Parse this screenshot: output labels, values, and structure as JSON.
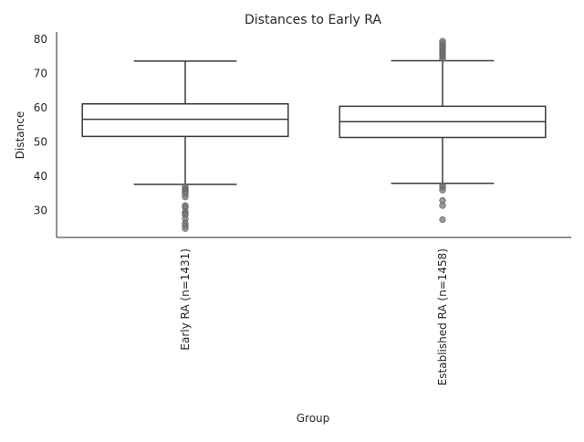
{
  "chart_data": {
    "type": "box",
    "title": "Distances to Early RA",
    "xlabel": "Group",
    "ylabel": "Distance",
    "ylim": [
      22,
      82
    ],
    "yticks": [
      30,
      40,
      50,
      60,
      70,
      80
    ],
    "grid": false,
    "legend": "none",
    "box_stroke": "#3a3a3a",
    "outlier_color": "#777777",
    "categories": [
      "Early RA (n=1431)",
      "Established RA (n=1458)"
    ],
    "boxes": [
      {
        "label": "Early RA (n=1431)",
        "whisker_low": 37.5,
        "q1": 51.5,
        "median": 56.5,
        "q3": 61.0,
        "whisker_high": 73.5,
        "outliers": [
          36.8,
          36.2,
          35.8,
          35.3,
          34.7,
          33.8,
          31.3,
          30.8,
          29.5,
          29.0,
          28.6,
          27.4,
          26.2,
          25.4,
          24.6
        ]
      },
      {
        "label": "Established RA (n=1458)",
        "whisker_low": 37.8,
        "q1": 51.2,
        "median": 55.8,
        "q3": 60.3,
        "whisker_high": 73.6,
        "outliers": [
          74.2,
          74.8,
          75.3,
          75.8,
          76.3,
          76.8,
          77.3,
          77.8,
          78.3,
          78.8,
          79.3,
          37.2,
          36.6,
          35.8,
          32.8,
          31.3,
          27.2
        ]
      }
    ]
  }
}
